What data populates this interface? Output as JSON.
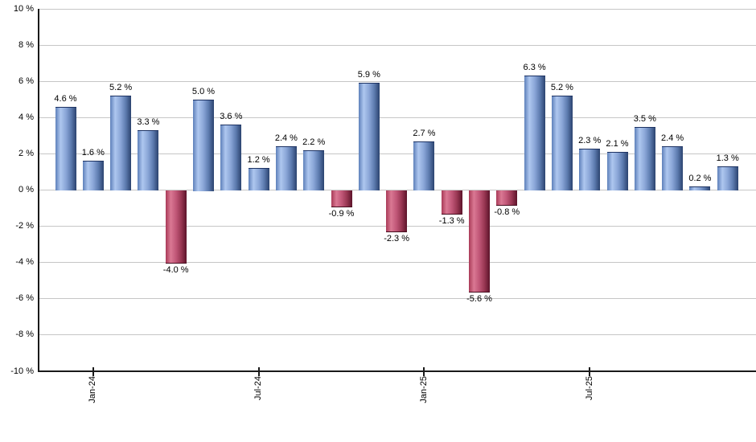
{
  "chart_data": {
    "type": "bar",
    "unit": "%",
    "ylim": [
      -10,
      10
    ],
    "grid": true,
    "legend": "none",
    "values": [
      4.6,
      1.6,
      5.2,
      3.3,
      -4.0,
      5.0,
      3.6,
      1.2,
      2.4,
      2.2,
      -0.9,
      5.9,
      -2.3,
      2.7,
      -1.3,
      -5.6,
      -0.8,
      6.3,
      5.2,
      2.3,
      2.1,
      3.5,
      2.4,
      0.2,
      1.3
    ],
    "bar_labels": [
      "4.6 %",
      "1.6 %",
      "5.2 %",
      "3.3 %",
      "-4.0 %",
      "5.0 %",
      "3.6 %",
      "1.2 %",
      "2.4 %",
      "2.2 %",
      "-0.9 %",
      "5.9 %",
      "-2.3 %",
      "2.7 %",
      "-1.3 %",
      "-5.6 %",
      "-0.8 %",
      "6.3 %",
      "5.2 %",
      "2.3 %",
      "2.1 %",
      "3.5 %",
      "2.4 %",
      "0.2 %",
      "1.3 %"
    ],
    "xticks": [
      {
        "bar_index": 1,
        "label": "Jan-24"
      },
      {
        "bar_index": 7,
        "label": "Jul-24"
      },
      {
        "bar_index": 13,
        "label": "Jan-25"
      },
      {
        "bar_index": 19,
        "label": "Jul-25"
      }
    ],
    "yticks": [
      {
        "value": 10,
        "label": "10 %"
      },
      {
        "value": 8,
        "label": "8 %"
      },
      {
        "value": 6,
        "label": "6 %"
      },
      {
        "value": 4,
        "label": "4 %"
      },
      {
        "value": 2,
        "label": "2 %"
      },
      {
        "value": 0,
        "label": "0 %"
      },
      {
        "value": -2,
        "label": "-2 %"
      },
      {
        "value": -4,
        "label": "-4 %"
      },
      {
        "value": -6,
        "label": "-6 %"
      },
      {
        "value": -8,
        "label": "-8 %"
      },
      {
        "value": -10,
        "label": "-10 %"
      }
    ],
    "colors": {
      "positive_bar": "#7f9fd6",
      "negative_bar": "#c34e6d",
      "gridline": "#c6c6c6",
      "axis": "#1a1a1a",
      "label_text": "#000000"
    }
  }
}
